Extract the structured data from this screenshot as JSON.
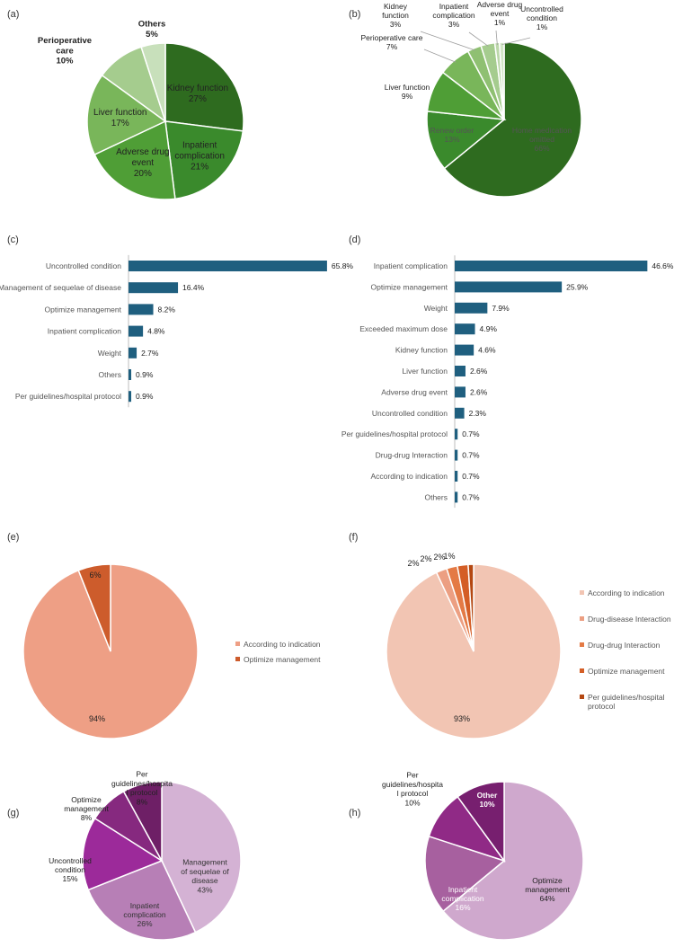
{
  "colors": {
    "bar": "#1f5f7f",
    "axis": "#bdbdbd",
    "text": "#222222",
    "muted": "#555555"
  },
  "chart_data": [
    {
      "id": "a",
      "panel_label": "(a)",
      "type": "pie",
      "categories": [
        "Kidney function",
        "Inpatient complication",
        "Adverse drug event",
        "Liver function",
        "Perioperative care",
        "Others"
      ],
      "values": [
        27,
        21,
        20,
        17,
        10,
        5
      ],
      "labels": [
        "Kidney function\n27%",
        "Inpatient\ncomplication\n21%",
        "Adverse drug\nevent\n20%",
        "Liver function\n17%",
        "Perioperative\ncare\n10%",
        "Others\n5%"
      ],
      "colors": [
        "#2e6b1f",
        "#3a8a2c",
        "#4f9e36",
        "#79b65a",
        "#a5cc8e",
        "#c8e0bb"
      ]
    },
    {
      "id": "b",
      "panel_label": "(b)",
      "type": "pie",
      "categories": [
        "Home medication omitted",
        "Renew order",
        "Liver function",
        "Perioperative care",
        "Kidney function",
        "Inpatient complication",
        "Adverse drug event",
        "Uncontrolled condition"
      ],
      "values": [
        66,
        13,
        9,
        7,
        3,
        3,
        1,
        1
      ],
      "labels": [
        "Home medication\nomitted\n66%",
        "Renew order\n13%",
        "Liver function\n9%",
        "Perioperative care\n7%",
        "Kidney\nfunction\n3%",
        "Inpatient\ncomplication\n3%",
        "Adverse drug\nevent\n1%",
        "Uncontrolled\ncondition\n1%"
      ],
      "colors": [
        "#2e6b1f",
        "#3a8a2c",
        "#4f9e36",
        "#79b65a",
        "#8fc072",
        "#a5cc8e",
        "#bcd8aa",
        "#d2e6c6"
      ]
    },
    {
      "id": "c",
      "panel_label": "(c)",
      "type": "bar",
      "orientation": "horizontal",
      "categories": [
        "Uncontrolled condition",
        "Management of sequelae of disease",
        "Optimize management",
        "Inpatient complication",
        "Weight",
        "Others",
        "Per guidelines/hospital protocol"
      ],
      "values": [
        65.8,
        16.4,
        8.2,
        4.8,
        2.7,
        0.9,
        0.9
      ],
      "value_labels": [
        "65.8%",
        "16.4%",
        "8.2%",
        "4.8%",
        "2.7%",
        "0.9%",
        "0.9%"
      ],
      "xlim": [
        0,
        70
      ]
    },
    {
      "id": "d",
      "panel_label": "(d)",
      "type": "bar",
      "orientation": "horizontal",
      "categories": [
        "Inpatient complication",
        "Optimize management",
        "Weight",
        "Exceeded maximum dose",
        "Kidney function",
        "Liver function",
        "Adverse drug event",
        "Uncontrolled condition",
        "Per guidelines/hospital protocol",
        "Drug-drug Interaction",
        "According to indication",
        "Others"
      ],
      "values": [
        46.6,
        25.9,
        7.9,
        4.9,
        4.6,
        2.6,
        2.6,
        2.3,
        0.7,
        0.7,
        0.7,
        0.7
      ],
      "value_labels": [
        "46.6%",
        "25.9%",
        "7.9%",
        "4.9%",
        "4.6%",
        "2.6%",
        "2.6%",
        "2.3%",
        "0.7%",
        "0.7%",
        "0.7%",
        "0.7%"
      ],
      "xlim": [
        0,
        50
      ]
    },
    {
      "id": "e",
      "panel_label": "(e)",
      "type": "pie",
      "categories": [
        "According to indication",
        "Optimize management"
      ],
      "values": [
        94,
        6
      ],
      "labels": [
        "94%",
        "6%"
      ],
      "colors": [
        "#ee9f85",
        "#cd5c2c"
      ],
      "legend": [
        "According to indication",
        "Optimize management"
      ]
    },
    {
      "id": "f",
      "panel_label": "(f)",
      "type": "pie",
      "categories": [
        "According to indication",
        "Drug-disease Interaction",
        "Drug-drug Interaction",
        "Optimize management",
        "Per guidelines/hospital protocol"
      ],
      "values": [
        93,
        2,
        2,
        2,
        1
      ],
      "labels": [
        "93%",
        "2%",
        "2%",
        "2%",
        "1%"
      ],
      "colors": [
        "#f2c5b3",
        "#ec9f82",
        "#e47a45",
        "#d45e26",
        "#b44812"
      ],
      "legend": [
        "According to indication",
        "Drug-disease Interaction",
        "Drug-drug Interaction",
        "Optimize management",
        "Per guidelines/hospital\nprotocol"
      ]
    },
    {
      "id": "g",
      "panel_label": "(g)",
      "type": "pie",
      "categories": [
        "Management of sequelae of disease",
        "Inpatient complication",
        "Uncontrolled condition",
        "Optimize management",
        "Per guidelines/hospital protocol"
      ],
      "values": [
        43,
        26,
        15,
        8,
        8
      ],
      "labels": [
        "Management\nof sequelae of\ndisease\n43%",
        "Inpatient\ncomplication\n26%",
        "Uncontrolled\ncondition\n15%",
        "Optimize\nmanagement\n8%",
        "Per\nguidelines/hospita\nl protocol\n8%"
      ],
      "colors": [
        "#d4b2d4",
        "#b77fb6",
        "#9c2a9a",
        "#86297f",
        "#6e1f66"
      ]
    },
    {
      "id": "h",
      "panel_label": "(h)",
      "type": "pie",
      "categories": [
        "Optimize management",
        "Inpatient complication",
        "Per guidelines/hospital protocol",
        "Other"
      ],
      "values": [
        64,
        16,
        10,
        10
      ],
      "labels": [
        "Optimize\nmanagement\n64%",
        "Inpatient\ncomplication\n16%",
        "Per\nguidelines/hospita\nl protocol\n10%",
        "Other\n10%"
      ],
      "colors": [
        "#cfa8cd",
        "#a7609f",
        "#902a86",
        "#771f6f"
      ]
    }
  ]
}
